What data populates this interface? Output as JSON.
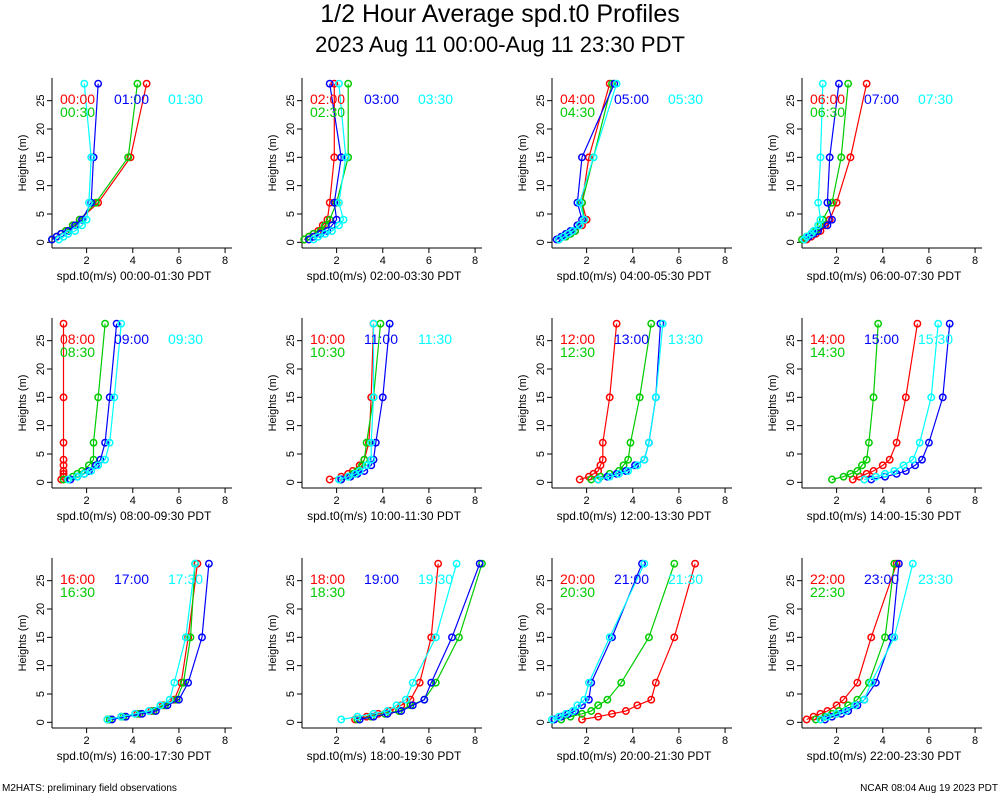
{
  "title": "1/2 Hour Average spd.t0 Profiles",
  "subtitle": "2023 Aug 11 00:00-Aug 11 23:30 PDT",
  "footer_left": "M2HATS: preliminary field observations",
  "footer_right": "NCAR 08:04 Aug 19 2023 PDT",
  "colors": {
    "series1": "#ff0000",
    "series2": "#00cc00",
    "series3": "#0000ff",
    "series4": "#00ffff"
  },
  "chart_data": [
    {
      "type": "line",
      "xlabel": "spd.t0(m/s) 00:00-01:30 PDT",
      "ylabel": "Heights (m)",
      "xlim": [
        0.5,
        8.3
      ],
      "ylim": [
        -1,
        29
      ],
      "xticks": [
        2,
        4,
        6,
        8
      ],
      "yticks": [
        0,
        5,
        10,
        15,
        20,
        25
      ],
      "heights": [
        0.5,
        1,
        1.5,
        2,
        3,
        4,
        7,
        15,
        28
      ],
      "series": [
        {
          "name": "00:00",
          "values": [
            0.5,
            0.7,
            0.9,
            1.1,
            1.4,
            1.7,
            2.5,
            3.9,
            4.6
          ]
        },
        {
          "name": "00:30",
          "values": [
            0.5,
            0.7,
            0.9,
            1.1,
            1.4,
            1.7,
            2.4,
            3.8,
            4.2
          ]
        },
        {
          "name": "01:00",
          "values": [
            0.5,
            0.7,
            0.9,
            1.2,
            1.5,
            1.8,
            2.2,
            2.3,
            2.5
          ]
        },
        {
          "name": "01:30",
          "values": [
            0.8,
            1.0,
            1.2,
            1.5,
            1.8,
            2.0,
            2.1,
            2.2,
            1.9
          ]
        }
      ]
    },
    {
      "type": "line",
      "xlabel": "spd.t0(m/s) 02:00-03:30 PDT",
      "ylabel": "Heights (m)",
      "xlim": [
        0.5,
        8.3
      ],
      "ylim": [
        -1,
        29
      ],
      "xticks": [
        2,
        4,
        6,
        8
      ],
      "yticks": [
        0,
        5,
        10,
        15,
        20,
        25
      ],
      "heights": [
        0.5,
        1,
        1.5,
        2,
        3,
        4,
        7,
        15,
        28
      ],
      "series": [
        {
          "name": "02:00",
          "values": [
            0.6,
            0.8,
            1.0,
            1.2,
            1.4,
            1.6,
            1.7,
            1.9,
            1.9
          ]
        },
        {
          "name": "02:30",
          "values": [
            0.6,
            0.8,
            1.0,
            1.3,
            1.5,
            1.7,
            2.0,
            2.5,
            2.5
          ]
        },
        {
          "name": "03:00",
          "values": [
            0.8,
            1.0,
            1.3,
            1.6,
            1.8,
            2.0,
            1.9,
            2.2,
            1.7
          ]
        },
        {
          "name": "03:30",
          "values": [
            1.0,
            1.2,
            1.5,
            1.8,
            2.1,
            2.3,
            2.1,
            2.4,
            2.1
          ]
        }
      ]
    },
    {
      "type": "line",
      "xlabel": "spd.t0(m/s) 04:00-05:30 PDT",
      "ylabel": "Heights (m)",
      "xlim": [
        0.5,
        8.3
      ],
      "ylim": [
        -1,
        29
      ],
      "xticks": [
        2,
        4,
        6,
        8
      ],
      "yticks": [
        0,
        5,
        10,
        15,
        20,
        25
      ],
      "heights": [
        0.5,
        1,
        1.5,
        2,
        3,
        4,
        7,
        15,
        28
      ],
      "series": [
        {
          "name": "04:00",
          "values": [
            0.8,
            1.0,
            1.3,
            1.5,
            1.8,
            2.0,
            1.8,
            2.1,
            3.0
          ]
        },
        {
          "name": "04:30",
          "values": [
            0.8,
            1.1,
            1.3,
            1.5,
            1.7,
            1.9,
            1.8,
            2.3,
            3.1
          ]
        },
        {
          "name": "05:00",
          "values": [
            0.7,
            0.9,
            1.1,
            1.3,
            1.6,
            1.8,
            1.6,
            1.8,
            3.2
          ]
        },
        {
          "name": "05:30",
          "values": [
            0.8,
            1.0,
            1.2,
            1.4,
            1.7,
            1.9,
            1.7,
            2.3,
            3.3
          ]
        }
      ]
    },
    {
      "type": "line",
      "xlabel": "spd.t0(m/s) 06:00-07:30 PDT",
      "ylabel": "Heights (m)",
      "xlim": [
        0.5,
        8.3
      ],
      "ylim": [
        -1,
        29
      ],
      "xticks": [
        2,
        4,
        6,
        8
      ],
      "yticks": [
        0,
        5,
        10,
        15,
        20,
        25
      ],
      "heights": [
        0.5,
        1,
        1.5,
        2,
        3,
        4,
        7,
        15,
        28
      ],
      "series": [
        {
          "name": "06:00",
          "values": [
            0.7,
            0.9,
            1.1,
            1.3,
            1.5,
            1.7,
            2.0,
            2.6,
            3.3
          ]
        },
        {
          "name": "06:30",
          "values": [
            0.5,
            0.7,
            0.9,
            1.1,
            1.3,
            1.4,
            1.8,
            2.2,
            2.5
          ]
        },
        {
          "name": "07:00",
          "values": [
            0.6,
            0.8,
            1.0,
            1.2,
            1.6,
            1.8,
            1.6,
            1.7,
            2.1
          ]
        },
        {
          "name": "07:30",
          "values": [
            0.6,
            0.7,
            0.9,
            1.0,
            1.2,
            1.3,
            1.2,
            1.3,
            1.4
          ]
        }
      ]
    },
    {
      "type": "line",
      "xlabel": "spd.t0(m/s) 08:00-09:30 PDT",
      "ylabel": "Heights (m)",
      "xlim": [
        0.5,
        8.3
      ],
      "ylim": [
        -1,
        29
      ],
      "xticks": [
        2,
        4,
        6,
        8
      ],
      "yticks": [
        0,
        5,
        10,
        15,
        20,
        25
      ],
      "heights": [
        0.5,
        1,
        1.5,
        2,
        3,
        4,
        7,
        15,
        28
      ],
      "series": [
        {
          "name": "08:00",
          "values": [
            0.9,
            1.0,
            1.0,
            1.0,
            1.0,
            1.0,
            1.0,
            1.0,
            1.0
          ]
        },
        {
          "name": "08:30",
          "values": [
            1.0,
            1.4,
            1.6,
            1.8,
            2.1,
            2.3,
            2.3,
            2.5,
            2.8
          ]
        },
        {
          "name": "09:00",
          "values": [
            1.3,
            1.6,
            1.9,
            2.1,
            2.4,
            2.6,
            2.8,
            3.0,
            3.3
          ]
        },
        {
          "name": "09:30",
          "values": [
            1.2,
            1.6,
            1.9,
            2.2,
            2.5,
            2.8,
            3.0,
            3.2,
            3.5
          ]
        }
      ]
    },
    {
      "type": "line",
      "xlabel": "spd.t0(m/s) 10:00-11:30 PDT",
      "ylabel": "Heights (m)",
      "xlim": [
        0.5,
        8.3
      ],
      "ylim": [
        -1,
        29
      ],
      "xticks": [
        2,
        4,
        6,
        8
      ],
      "yticks": [
        0,
        5,
        10,
        15,
        20,
        25
      ],
      "heights": [
        0.5,
        1,
        1.5,
        2,
        3,
        4,
        7,
        15,
        28
      ],
      "series": [
        {
          "name": "10:00",
          "values": [
            1.7,
            2.2,
            2.5,
            2.7,
            3.0,
            3.2,
            3.4,
            3.5,
            3.6
          ]
        },
        {
          "name": "10:30",
          "values": [
            2.2,
            2.5,
            2.7,
            2.9,
            3.1,
            3.2,
            3.3,
            3.6,
            3.9
          ]
        },
        {
          "name": "11:00",
          "values": [
            2.2,
            2.6,
            2.9,
            3.2,
            3.5,
            3.6,
            3.7,
            4.0,
            4.3
          ]
        },
        {
          "name": "11:30",
          "values": [
            2.1,
            2.5,
            2.8,
            3.0,
            3.3,
            3.5,
            3.5,
            3.6,
            3.6
          ]
        }
      ]
    },
    {
      "type": "line",
      "xlabel": "spd.t0(m/s) 12:00-13:30 PDT",
      "ylabel": "Heights (m)",
      "xlim": [
        0.5,
        8.3
      ],
      "ylim": [
        -1,
        29
      ],
      "xticks": [
        2,
        4,
        6,
        8
      ],
      "yticks": [
        0,
        5,
        10,
        15,
        20,
        25
      ],
      "heights": [
        0.5,
        1,
        1.5,
        2,
        3,
        4,
        7,
        15,
        28
      ],
      "series": [
        {
          "name": "12:00",
          "values": [
            1.7,
            2.1,
            2.3,
            2.5,
            2.6,
            2.7,
            2.7,
            3.0,
            3.3
          ]
        },
        {
          "name": "12:30",
          "values": [
            2.2,
            2.6,
            3.0,
            3.4,
            3.6,
            3.8,
            3.9,
            4.3,
            4.8
          ]
        },
        {
          "name": "13:00",
          "values": [
            2.5,
            2.9,
            3.3,
            3.7,
            4.1,
            4.5,
            4.7,
            5.0,
            5.2
          ]
        },
        {
          "name": "13:30",
          "values": [
            2.5,
            3.0,
            3.4,
            3.8,
            4.2,
            4.5,
            4.7,
            5.0,
            5.3
          ]
        }
      ]
    },
    {
      "type": "line",
      "xlabel": "spd.t0(m/s) 14:00-15:30 PDT",
      "ylabel": "Heights (m)",
      "xlim": [
        0.5,
        8.3
      ],
      "ylim": [
        -1,
        29
      ],
      "xticks": [
        2,
        4,
        6,
        8
      ],
      "yticks": [
        0,
        5,
        10,
        15,
        20,
        25
      ],
      "heights": [
        0.5,
        1,
        1.5,
        2,
        3,
        4,
        7,
        15,
        28
      ],
      "series": [
        {
          "name": "14:00",
          "values": [
            2.7,
            3.0,
            3.3,
            3.6,
            4.0,
            4.3,
            4.6,
            5.0,
            5.5
          ]
        },
        {
          "name": "14:30",
          "values": [
            1.8,
            2.3,
            2.6,
            2.9,
            3.1,
            3.3,
            3.4,
            3.6,
            3.8
          ]
        },
        {
          "name": "15:00",
          "values": [
            3.5,
            4.1,
            4.6,
            5.0,
            5.4,
            5.7,
            6.0,
            6.6,
            6.9
          ]
        },
        {
          "name": "15:30",
          "values": [
            3.2,
            3.7,
            4.1,
            4.5,
            4.9,
            5.3,
            5.6,
            6.1,
            6.4
          ]
        }
      ]
    },
    {
      "type": "line",
      "xlabel": "spd.t0(m/s) 16:00-17:30 PDT",
      "ylabel": "Heights (m)",
      "xlim": [
        0.5,
        8.3
      ],
      "ylim": [
        -1,
        29
      ],
      "xticks": [
        2,
        4,
        6,
        8
      ],
      "yticks": [
        0,
        5,
        10,
        15,
        20,
        25
      ],
      "heights": [
        0.5,
        1,
        1.5,
        2,
        3,
        4,
        7,
        15,
        28
      ],
      "series": [
        {
          "name": "16:00",
          "values": [
            2.9,
            3.5,
            4.2,
            4.8,
            5.3,
            5.8,
            6.1,
            6.4,
            6.8
          ]
        },
        {
          "name": "16:30",
          "values": [
            3.0,
            3.6,
            4.3,
            4.9,
            5.4,
            5.9,
            6.2,
            6.5,
            6.7
          ]
        },
        {
          "name": "17:00",
          "values": [
            3.1,
            3.7,
            4.4,
            5.0,
            5.5,
            6.0,
            6.4,
            7.0,
            7.3
          ]
        },
        {
          "name": "17:30",
          "values": [
            2.9,
            3.5,
            4.1,
            4.7,
            5.2,
            5.6,
            5.8,
            6.3,
            6.7
          ]
        }
      ]
    },
    {
      "type": "line",
      "xlabel": "spd.t0(m/s) 18:00-19:30 PDT",
      "ylabel": "Heights (m)",
      "xlim": [
        0.5,
        8.3
      ],
      "ylim": [
        -1,
        29
      ],
      "xticks": [
        2,
        4,
        6,
        8
      ],
      "yticks": [
        0,
        5,
        10,
        15,
        20,
        25
      ],
      "heights": [
        0.5,
        1,
        1.5,
        2,
        3,
        4,
        7,
        15,
        28
      ],
      "series": [
        {
          "name": "18:00",
          "values": [
            2.8,
            3.3,
            3.8,
            4.3,
            4.8,
            5.2,
            5.6,
            6.1,
            6.4
          ]
        },
        {
          "name": "18:30",
          "values": [
            2.9,
            3.5,
            4.1,
            4.7,
            5.2,
            5.8,
            6.3,
            7.3,
            8.3
          ]
        },
        {
          "name": "19:00",
          "values": [
            3.0,
            3.6,
            4.2,
            4.8,
            5.3,
            5.8,
            6.1,
            7.0,
            8.2
          ]
        },
        {
          "name": "19:30",
          "values": [
            2.2,
            2.9,
            3.6,
            4.2,
            4.6,
            5.0,
            5.3,
            6.3,
            7.2
          ]
        }
      ]
    },
    {
      "type": "line",
      "xlabel": "spd.t0(m/s) 20:00-21:30 PDT",
      "ylabel": "Heights (m)",
      "xlim": [
        0.5,
        8.3
      ],
      "ylim": [
        -1,
        29
      ],
      "xticks": [
        2,
        4,
        6,
        8
      ],
      "yticks": [
        0,
        5,
        10,
        15,
        20,
        25
      ],
      "heights": [
        0.5,
        1,
        1.5,
        2,
        3,
        4,
        7,
        15,
        28
      ],
      "series": [
        {
          "name": "20:00",
          "values": [
            1.8,
            2.5,
            3.1,
            3.7,
            4.2,
            4.8,
            5.0,
            5.8,
            6.7
          ]
        },
        {
          "name": "20:30",
          "values": [
            0.9,
            1.3,
            1.8,
            2.2,
            2.5,
            2.9,
            3.5,
            4.7,
            5.8
          ]
        },
        {
          "name": "21:00",
          "values": [
            0.6,
            0.9,
            1.2,
            1.5,
            1.8,
            2.1,
            2.2,
            3.1,
            4.4
          ]
        },
        {
          "name": "21:30",
          "values": [
            0.5,
            0.8,
            1.1,
            1.4,
            1.6,
            1.9,
            2.1,
            3.0,
            4.5
          ]
        }
      ]
    },
    {
      "type": "line",
      "xlabel": "spd.t0(m/s) 22:00-23:30 PDT",
      "ylabel": "Heights (m)",
      "xlim": [
        0.5,
        8.3
      ],
      "ylim": [
        -1,
        29
      ],
      "xticks": [
        2,
        4,
        6,
        8
      ],
      "yticks": [
        0,
        5,
        10,
        15,
        20,
        25
      ],
      "heights": [
        0.5,
        1,
        1.5,
        2,
        3,
        4,
        7,
        15,
        28
      ],
      "series": [
        {
          "name": "22:00",
          "values": [
            0.7,
            1.0,
            1.3,
            1.6,
            2.0,
            2.3,
            2.9,
            3.5,
            4.6
          ]
        },
        {
          "name": "22:30",
          "values": [
            1.1,
            1.5,
            1.8,
            2.1,
            2.5,
            2.9,
            3.4,
            4.1,
            4.5
          ]
        },
        {
          "name": "23:00",
          "values": [
            1.5,
            1.8,
            2.2,
            2.5,
            2.9,
            3.2,
            3.7,
            4.4,
            4.7
          ]
        },
        {
          "name": "23:30",
          "values": [
            1.3,
            1.6,
            2.0,
            2.4,
            2.8,
            3.2,
            3.5,
            4.5,
            5.3
          ]
        }
      ]
    }
  ]
}
